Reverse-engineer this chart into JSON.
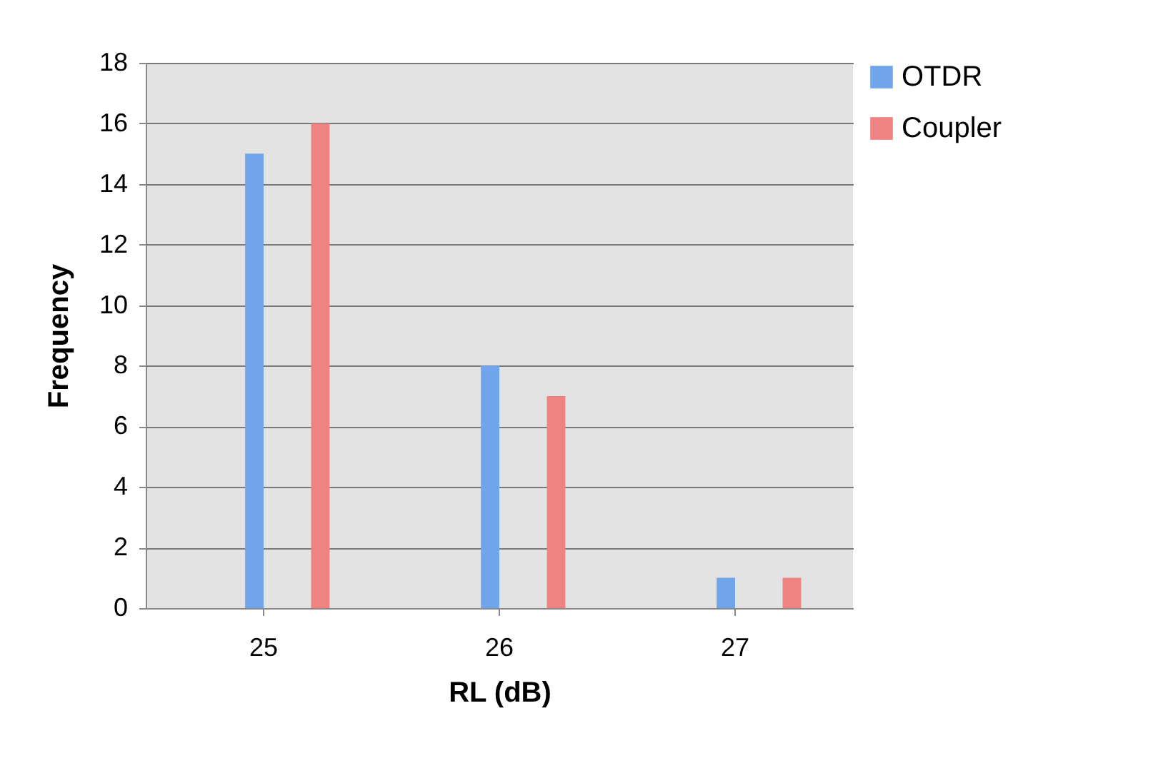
{
  "chart_data": {
    "type": "bar",
    "xlabel": "RL (dB)",
    "ylabel": "Frequency",
    "categories": [
      "25",
      "26",
      "27"
    ],
    "series": [
      {
        "name": "OTDR",
        "color": "#72a6ec",
        "values": [
          15,
          8,
          1
        ]
      },
      {
        "name": "Coupler",
        "color": "#ee8381",
        "values": [
          16,
          7,
          1
        ]
      }
    ],
    "ylim": [
      0,
      18
    ],
    "yticks": [
      0,
      2,
      4,
      6,
      8,
      10,
      12,
      14,
      16,
      18
    ],
    "grid": "y",
    "legend": "right"
  }
}
